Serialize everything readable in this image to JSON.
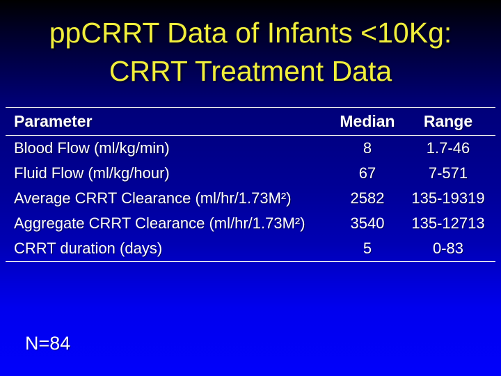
{
  "title": {
    "line1": "ppCRRT Data of Infants <10Kg:",
    "line2": "CRRT Treatment Data"
  },
  "table": {
    "headers": [
      "Parameter",
      "Median",
      "Range"
    ],
    "rows": [
      {
        "parameter": "Blood Flow (ml/kg/min)",
        "median": "8",
        "range": "1.7-46"
      },
      {
        "parameter": "Fluid Flow (ml/kg/hour)",
        "median": "67",
        "range": "7-571"
      },
      {
        "parameter": "Average CRRT Clearance (ml/hr/1.73M²)",
        "median": "2582",
        "range": "135-19319"
      },
      {
        "parameter": "Aggregate CRRT Clearance (ml/hr/1.73M²)",
        "median": "3540",
        "range": "135-12713"
      },
      {
        "parameter": "CRRT duration (days)",
        "median": "5",
        "range": "0-83"
      }
    ]
  },
  "footer": {
    "n_label": "N=84"
  },
  "colors": {
    "title_text": "#f0ee3c",
    "body_text": "#ffffff",
    "rule_lines": "#f2f2f2",
    "background_top": "#000000",
    "background_bottom": "#0101fb"
  }
}
